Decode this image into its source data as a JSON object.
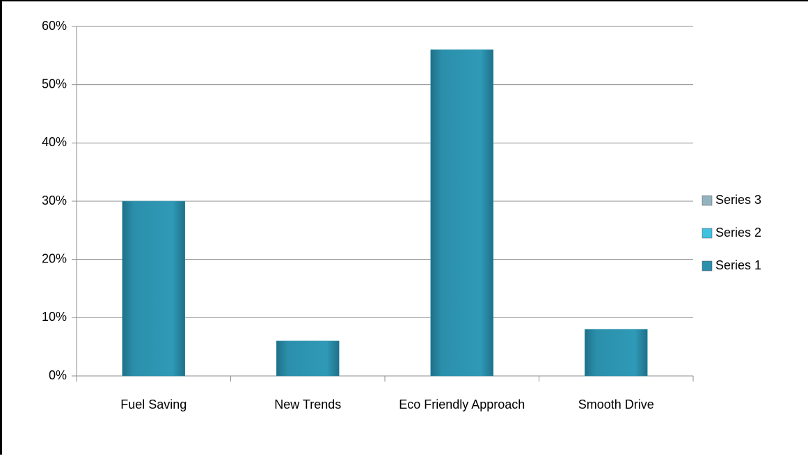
{
  "chart_data": {
    "type": "bar",
    "categories": [
      "Fuel Saving",
      "New Trends",
      "Eco Friendly Approach",
      "Smooth Drive"
    ],
    "series": [
      {
        "name": "Series 1",
        "color": "#2b8fab",
        "values": [
          30,
          6,
          56,
          8
        ]
      },
      {
        "name": "Series 2",
        "color": "#3ec2df",
        "values": [
          null,
          null,
          null,
          null
        ]
      },
      {
        "name": "Series 3",
        "color": "#93b3bf",
        "values": [
          null,
          null,
          null,
          null
        ]
      }
    ],
    "ylim": [
      0,
      60
    ],
    "yticks": [
      {
        "value": 0,
        "label": "0%"
      },
      {
        "value": 10,
        "label": "10%"
      },
      {
        "value": 20,
        "label": "20%"
      },
      {
        "value": 30,
        "label": "30%"
      },
      {
        "value": 40,
        "label": "40%"
      },
      {
        "value": 50,
        "label": "50%"
      },
      {
        "value": 60,
        "label": "60%"
      }
    ],
    "grid": true,
    "legend": "right"
  }
}
